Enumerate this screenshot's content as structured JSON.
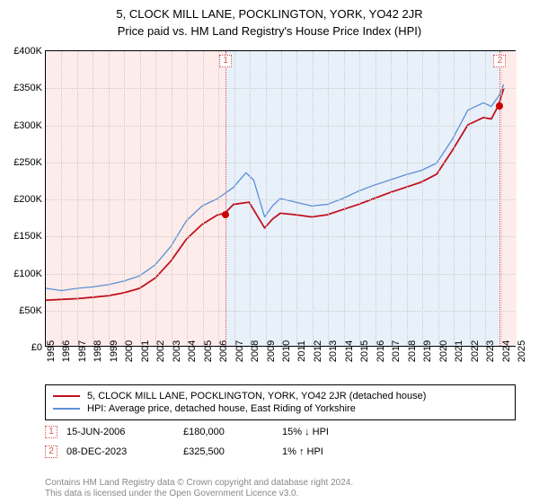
{
  "title": "5, CLOCK MILL LANE, POCKLINGTON, YORK, YO42 2JR",
  "subtitle": "Price paid vs. HM Land Registry's House Price Index (HPI)",
  "chart": {
    "type": "line",
    "ylim": [
      0,
      400000
    ],
    "ytick_step": 50000,
    "yticks": [
      "£0",
      "£50K",
      "£100K",
      "£150K",
      "£200K",
      "£250K",
      "£300K",
      "£350K",
      "£400K"
    ],
    "xlim": [
      1995,
      2025
    ],
    "xticks": [
      "1995",
      "1996",
      "1997",
      "1998",
      "1999",
      "2000",
      "2001",
      "2002",
      "2003",
      "2004",
      "2005",
      "2006",
      "2007",
      "2008",
      "2009",
      "2010",
      "2011",
      "2012",
      "2013",
      "2014",
      "2015",
      "2016",
      "2017",
      "2018",
      "2019",
      "2020",
      "2021",
      "2022",
      "2023",
      "2024",
      "2025"
    ],
    "background_color": "#ffffff",
    "grid_color": "#cccccc",
    "shade_colors": [
      "#fdecea",
      "#e8f0fa",
      "#fdecea"
    ],
    "shade_ranges": [
      [
        1995,
        2006.46
      ],
      [
        2006.46,
        2023.94
      ],
      [
        2023.94,
        2025
      ]
    ],
    "series": [
      {
        "name": "hpi",
        "color": "#5b8fd6",
        "line_width": 1.3,
        "label": "HPI: Average price, detached house, East Riding of Yorkshire",
        "points": [
          [
            1995,
            78000
          ],
          [
            1996,
            75000
          ],
          [
            1997,
            78000
          ],
          [
            1998,
            80000
          ],
          [
            1999,
            83000
          ],
          [
            2000,
            88000
          ],
          [
            2001,
            95000
          ],
          [
            2002,
            110000
          ],
          [
            2003,
            135000
          ],
          [
            2004,
            170000
          ],
          [
            2005,
            190000
          ],
          [
            2006,
            200000
          ],
          [
            2007,
            215000
          ],
          [
            2007.8,
            235000
          ],
          [
            2008.3,
            225000
          ],
          [
            2009,
            175000
          ],
          [
            2009.5,
            190000
          ],
          [
            2010,
            200000
          ],
          [
            2011,
            195000
          ],
          [
            2012,
            190000
          ],
          [
            2013,
            192000
          ],
          [
            2014,
            200000
          ],
          [
            2015,
            210000
          ],
          [
            2016,
            218000
          ],
          [
            2017,
            225000
          ],
          [
            2018,
            232000
          ],
          [
            2019,
            238000
          ],
          [
            2020,
            248000
          ],
          [
            2021,
            280000
          ],
          [
            2022,
            320000
          ],
          [
            2023,
            330000
          ],
          [
            2023.5,
            325000
          ],
          [
            2024,
            340000
          ],
          [
            2024.3,
            355000
          ]
        ]
      },
      {
        "name": "price_paid",
        "color": "#c1121f",
        "line_width": 1.8,
        "label": "5, CLOCK MILL LANE, POCKLINGTON, YORK, YO42 2JR (detached house)",
        "points": [
          [
            1995,
            62000
          ],
          [
            1996,
            63000
          ],
          [
            1997,
            64000
          ],
          [
            1998,
            66000
          ],
          [
            1999,
            68000
          ],
          [
            2000,
            72000
          ],
          [
            2001,
            78000
          ],
          [
            2002,
            92000
          ],
          [
            2003,
            115000
          ],
          [
            2004,
            145000
          ],
          [
            2005,
            165000
          ],
          [
            2006,
            178000
          ],
          [
            2006.46,
            180000
          ],
          [
            2007,
            192000
          ],
          [
            2008,
            195000
          ],
          [
            2009,
            160000
          ],
          [
            2009.5,
            172000
          ],
          [
            2010,
            180000
          ],
          [
            2011,
            178000
          ],
          [
            2012,
            175000
          ],
          [
            2013,
            178000
          ],
          [
            2014,
            185000
          ],
          [
            2015,
            192000
          ],
          [
            2016,
            200000
          ],
          [
            2017,
            208000
          ],
          [
            2018,
            215000
          ],
          [
            2019,
            222000
          ],
          [
            2020,
            233000
          ],
          [
            2021,
            265000
          ],
          [
            2022,
            300000
          ],
          [
            2023,
            310000
          ],
          [
            2023.5,
            308000
          ],
          [
            2023.94,
            325500
          ],
          [
            2024.3,
            350000
          ]
        ]
      }
    ],
    "markers": [
      {
        "num": "1",
        "x": 2006.46,
        "y": 180000
      },
      {
        "num": "2",
        "x": 2023.94,
        "y": 325500
      }
    ]
  },
  "legend": {
    "items": [
      {
        "color": "#c1121f",
        "label": "5, CLOCK MILL LANE, POCKLINGTON, YORK, YO42 2JR (detached house)"
      },
      {
        "color": "#5b8fd6",
        "label": "HPI: Average price, detached house, East Riding of Yorkshire"
      }
    ]
  },
  "table": {
    "rows": [
      {
        "num": "1",
        "date": "15-JUN-2006",
        "price": "£180,000",
        "diff": "15% ↓ HPI"
      },
      {
        "num": "2",
        "date": "08-DEC-2023",
        "price": "£325,500",
        "diff": "1% ↑ HPI"
      }
    ]
  },
  "footer": {
    "line1": "Contains HM Land Registry data © Crown copyright and database right 2024.",
    "line2": "This data is licensed under the Open Government Licence v3.0."
  }
}
